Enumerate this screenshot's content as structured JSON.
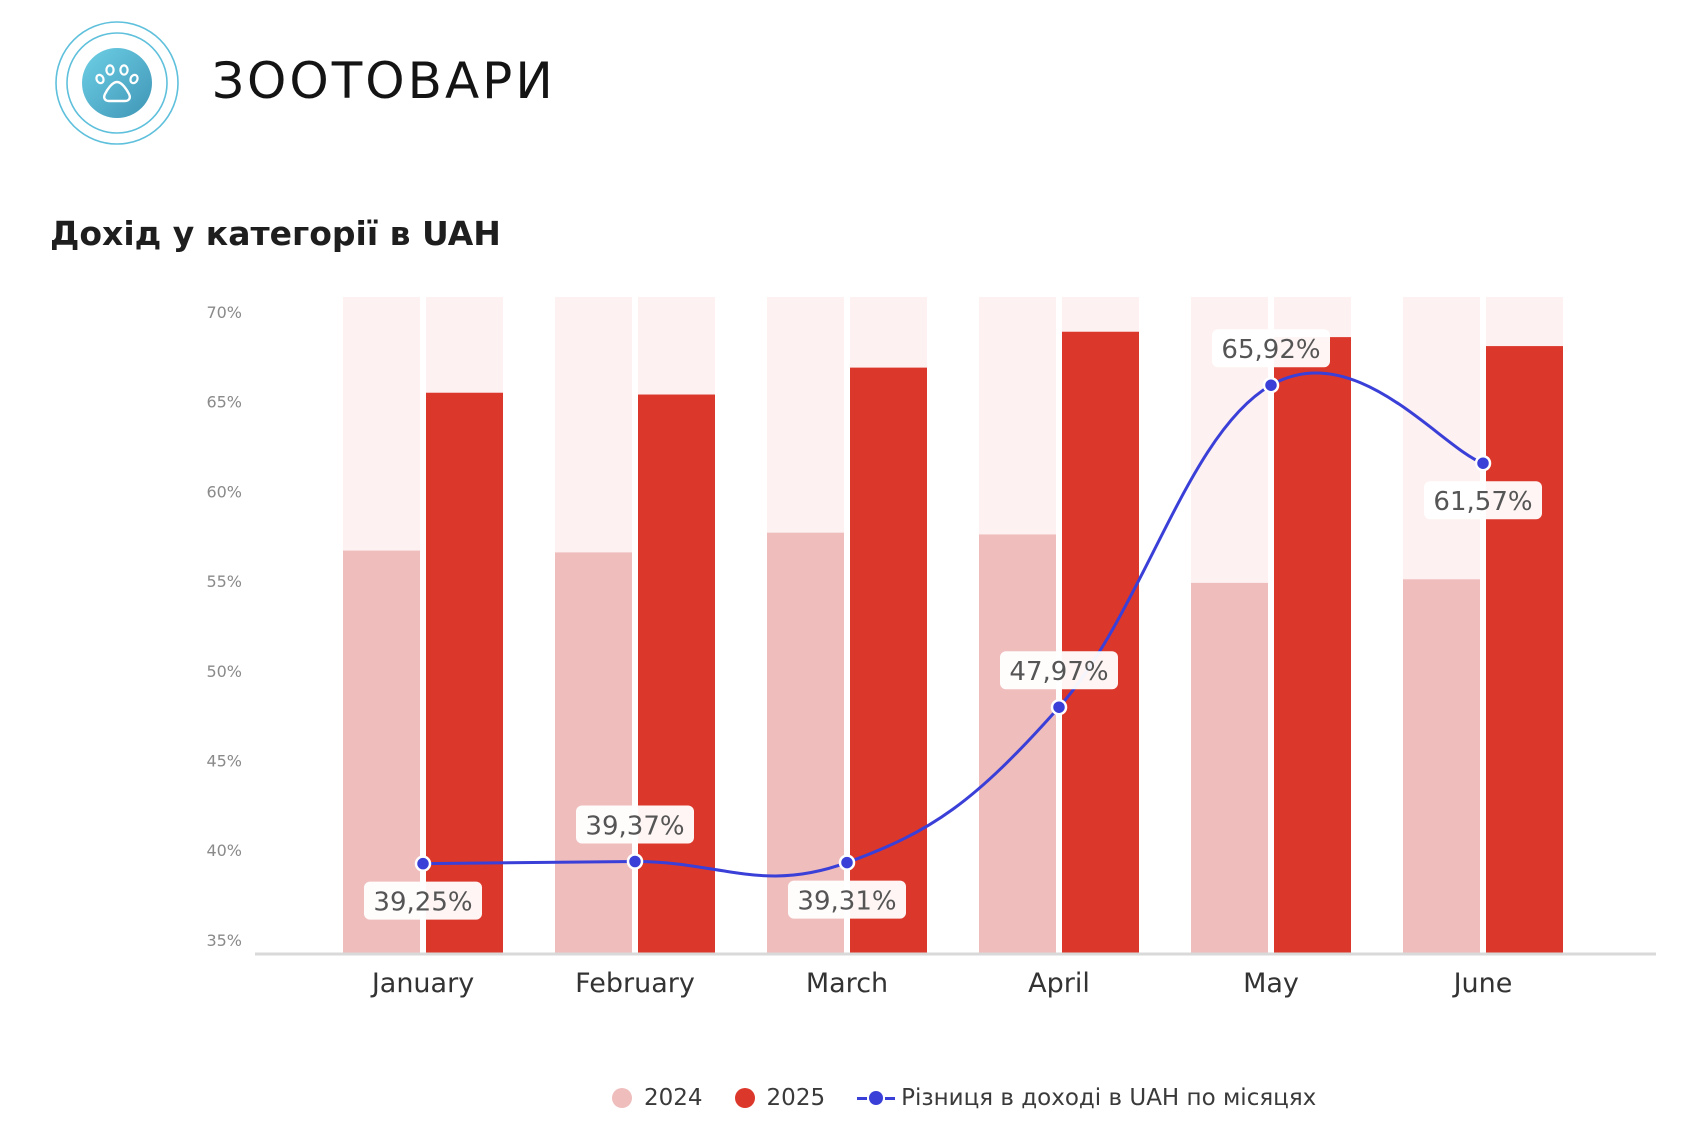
{
  "header": {
    "logo_icon": "paw-icon",
    "brand_name": "ЗООТОВАРИ"
  },
  "page_title": "Дохід у категорії в UAH",
  "colors": {
    "series_2024": "#f0bdbd",
    "series_2025": "#dc372b",
    "background_bar": "#fdf1f1",
    "line": "#3a3fd8",
    "logo_gradient_start": "#6ed0e6",
    "logo_gradient_end": "#3f95b6"
  },
  "legend": {
    "items": [
      {
        "label": "2024",
        "type": "dot"
      },
      {
        "label": "2025",
        "type": "dot"
      },
      {
        "label": "Різниця в доході в UAH по місяцях",
        "type": "line"
      }
    ]
  },
  "chart_data": {
    "type": "bar",
    "title": "Дохід у категорії в UAH",
    "xlabel": "",
    "ylabel": "",
    "categories": [
      "January",
      "February",
      "March",
      "April",
      "May",
      "June"
    ],
    "y_ticks": [
      "70%",
      "65%",
      "60%",
      "55%",
      "50%",
      "45%",
      "40%",
      "35%"
    ],
    "ylim": [
      35,
      70
    ],
    "grid": false,
    "legend_position": "bottom",
    "series": [
      {
        "name": "2024",
        "type": "bar",
        "values": [
          56.7,
          56.6,
          57.7,
          57.6,
          54.9,
          55.1
        ]
      },
      {
        "name": "2025",
        "type": "bar",
        "values": [
          65.5,
          65.4,
          66.9,
          68.9,
          68.6,
          68.1
        ]
      },
      {
        "name": "Різниця в доході в UAH по місяцях",
        "type": "line",
        "values": [
          39.25,
          39.37,
          39.31,
          47.97,
          65.92,
          61.57
        ],
        "labels": [
          "39,25%",
          "39,37%",
          "39,31%",
          "47,97%",
          "65,92%",
          "61,57%"
        ]
      }
    ]
  }
}
